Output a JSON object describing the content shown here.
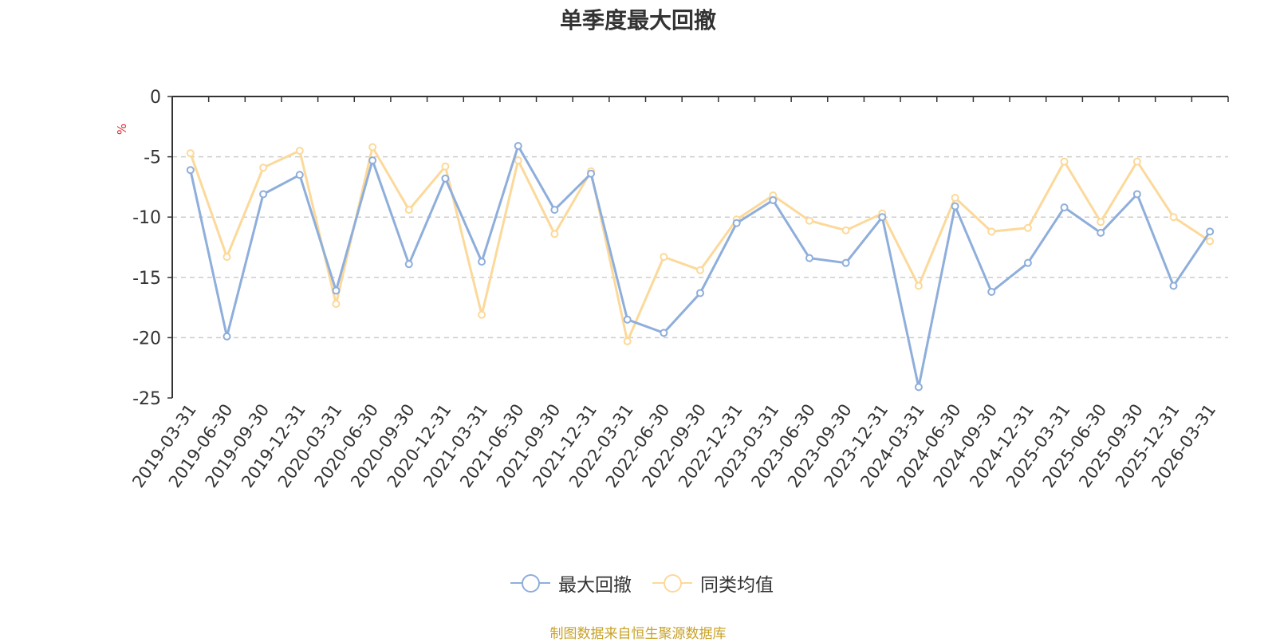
{
  "chart_data": {
    "type": "line",
    "title": "单季度最大回撤",
    "ylabel": "%",
    "xlabel": "",
    "ylim": [
      -25,
      0
    ],
    "yticks": [
      0,
      -5,
      -10,
      -15,
      -20,
      -25
    ],
    "grid": true,
    "legend_position": "bottom",
    "categories": [
      "2019-03-31",
      "2019-06-30",
      "2019-09-30",
      "2019-12-31",
      "2020-03-31",
      "2020-06-30",
      "2020-09-30",
      "2020-12-31",
      "2021-03-31",
      "2021-06-30",
      "2021-09-30",
      "2021-12-31",
      "2022-03-31",
      "2022-06-30",
      "2022-09-30",
      "2022-12-31",
      "2023-03-31",
      "2023-06-30",
      "2023-09-30",
      "2023-12-31",
      "2024-03-31",
      "2024-06-30",
      "2024-09-30",
      "2024-12-31",
      "2025-03-31",
      "2025-06-30",
      "2025-09-30",
      "2025-12-31",
      "2026-03-31"
    ],
    "series": [
      {
        "name": "最大回撤",
        "color": "#8eaedb",
        "values": [
          -6.1,
          -19.9,
          -8.1,
          -6.5,
          -16.1,
          -5.3,
          -13.9,
          -6.8,
          -13.7,
          -4.1,
          -9.4,
          -6.4,
          -18.5,
          -19.6,
          -16.3,
          -10.5,
          -8.6,
          -13.4,
          -13.8,
          -10.0,
          -24.1,
          -9.1,
          -16.2,
          -13.8,
          -9.2,
          -11.3,
          -8.1,
          -15.7,
          -11.2
        ]
      },
      {
        "name": "同类均值",
        "color": "#fcd99a",
        "values": [
          -4.7,
          -13.3,
          -5.9,
          -4.5,
          -17.2,
          -4.2,
          -9.4,
          -5.8,
          -18.1,
          -5.3,
          -11.4,
          -6.2,
          -20.3,
          -13.3,
          -14.4,
          -10.2,
          -8.2,
          -10.3,
          -11.1,
          -9.7,
          -15.7,
          -8.4,
          -11.2,
          -10.9,
          -5.4,
          -10.4,
          -5.4,
          -10.0,
          -12.0
        ]
      }
    ]
  },
  "footer": "制图数据来自恒生聚源数据库"
}
